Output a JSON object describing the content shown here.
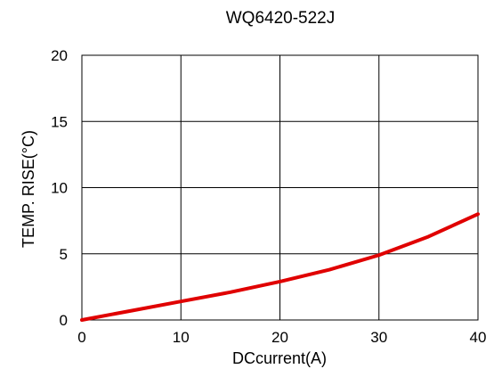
{
  "chart_data": {
    "type": "line",
    "title": "WQ6420-522J",
    "xlabel": "DCcurrent(A)",
    "ylabel": "TEMP. RISE(°C)",
    "xlim": [
      0,
      40
    ],
    "ylim": [
      0,
      20
    ],
    "x_ticks": [
      0,
      10,
      20,
      30,
      40
    ],
    "y_ticks": [
      0,
      5,
      10,
      15,
      20
    ],
    "grid": true,
    "series": [
      {
        "color": "#e00000",
        "x": [
          0,
          5,
          10,
          15,
          20,
          25,
          30,
          35,
          40
        ],
        "y": [
          0,
          0.7,
          1.4,
          2.1,
          2.9,
          3.8,
          4.9,
          6.3,
          8.0
        ]
      }
    ]
  }
}
